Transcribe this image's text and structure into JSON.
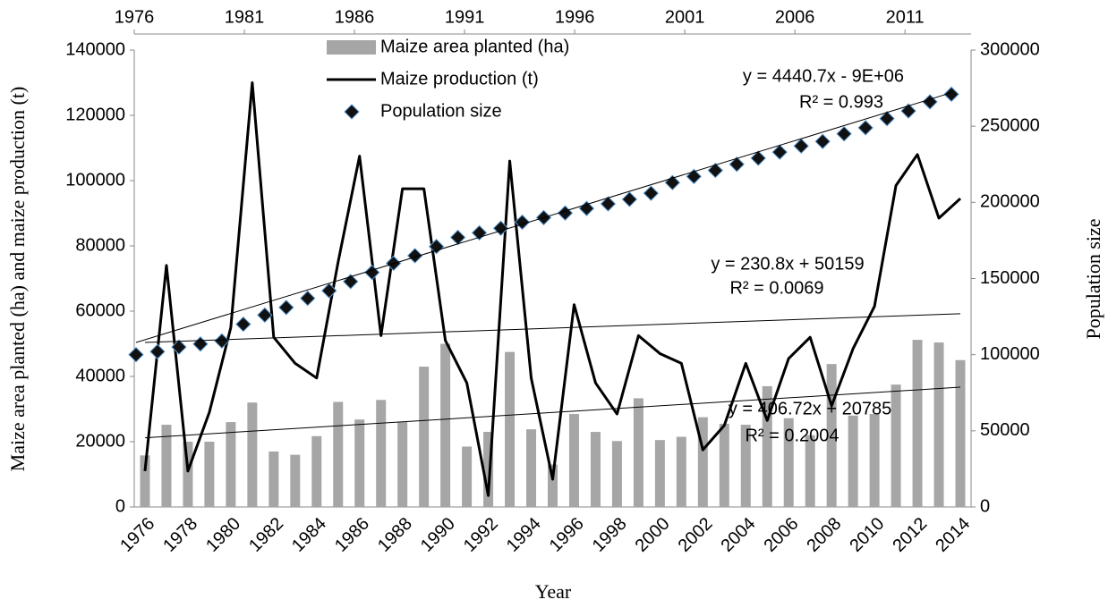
{
  "chart_data": {
    "type": "combo",
    "x_label": "Year",
    "y_label": "Maize area planted (ha) and maize production (t)",
    "y2_label": "Population size",
    "categories": [
      "1976",
      null,
      "1978",
      null,
      "1980",
      null,
      "1982",
      null,
      "1984",
      null,
      "1986",
      null,
      "1988",
      null,
      "1990",
      null,
      "1992",
      null,
      "1994",
      null,
      "1996",
      null,
      "1998",
      null,
      "2000",
      null,
      "2002",
      null,
      "2004",
      null,
      "2006",
      null,
      "2008",
      null,
      "2010",
      null,
      "2012",
      null,
      "2014"
    ],
    "series": [
      {
        "name": "Maize area planted (ha)",
        "type": "bar",
        "color": "#a6a6a6",
        "values": [
          15800,
          25200,
          20000,
          20000,
          26000,
          32000,
          17000,
          16000,
          21700,
          32200,
          26800,
          32800,
          26000,
          43000,
          50000,
          18500,
          23000,
          47500,
          23800,
          13000,
          28500,
          23000,
          20200,
          33300,
          20500,
          21500,
          27500,
          25500,
          25200,
          37000,
          27200,
          22000,
          43800,
          28000,
          28500,
          37500,
          51200,
          50400,
          45000
        ]
      },
      {
        "name": "Maize production (t)",
        "type": "line",
        "color": "#000000",
        "values": [
          11000,
          74000,
          11000,
          29000,
          55000,
          130000,
          52000,
          44000,
          39500,
          75000,
          107500,
          52500,
          97500,
          97500,
          51000,
          38000,
          3500,
          106000,
          39500,
          8500,
          62000,
          38000,
          28500,
          52500,
          47000,
          44000,
          17500,
          25000,
          44000,
          26500,
          45500,
          52000,
          31000,
          48500,
          61500,
          98500,
          108000,
          88500,
          94500
        ]
      },
      {
        "name": "Population size",
        "type": "scatter",
        "axis": "y2",
        "color": "#111111",
        "values": [
          100000,
          102000,
          105000,
          107000,
          109000,
          120000,
          126000,
          131000,
          137000,
          142000,
          148000,
          154000,
          160000,
          165000,
          171000,
          177000,
          180000,
          183000,
          187000,
          190000,
          193000,
          196000,
          199000,
          202000,
          206000,
          213000,
          217000,
          221000,
          225000,
          229000,
          233000,
          237000,
          240000,
          245000,
          249000,
          255000,
          260000,
          266000,
          271000
        ]
      }
    ],
    "trendlines": [
      {
        "equation": "y = 4440.7x - 9E+06",
        "r_squared": "R² = 0.993",
        "axis": "y2",
        "values": [
          108000,
          272000
        ]
      },
      {
        "equation": "y = 230.8x + 50159",
        "r_squared": "R² = 0.0069",
        "values": [
          50400,
          59200
        ]
      },
      {
        "equation": "y = 406.72x + 20785",
        "r_squared": "R² = 0.2004",
        "values": [
          21200,
          36700
        ]
      }
    ],
    "ylim": [
      0,
      140000
    ],
    "yticks": [
      0,
      20000,
      40000,
      60000,
      80000,
      100000,
      120000,
      140000
    ],
    "y2lim": [
      0,
      300000
    ],
    "y2ticks": [
      0,
      50000,
      100000,
      150000,
      200000,
      250000,
      300000
    ],
    "top_xlim": [
      1976,
      2014
    ],
    "top_xticks": [
      1976,
      1981,
      1986,
      1991,
      1996,
      2001,
      2006,
      2011
    ]
  }
}
